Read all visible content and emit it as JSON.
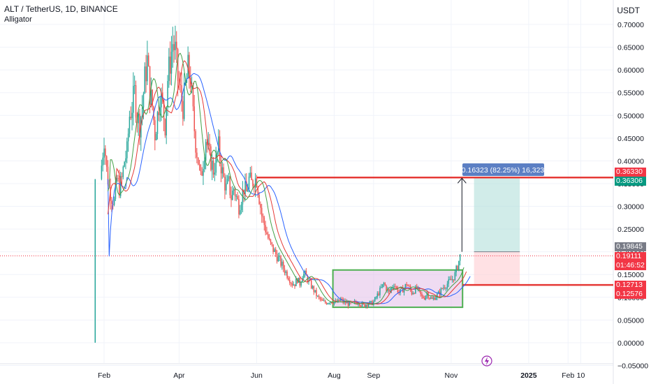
{
  "header": {
    "symbol_line": "ALT / TetherUS, 1D, BINANCE",
    "indicator": "Alligator",
    "currency": "USDT"
  },
  "measure_label": "0.16323 (82.25%) 16,323",
  "price_tags": [
    {
      "text": "0.36330",
      "bg": "#f23645",
      "fg": "#ffffff"
    },
    {
      "text": "0.36306",
      "bg": "#089981",
      "fg": "#ffffff"
    },
    {
      "text": "0.19845",
      "bg": "#787b86",
      "fg": "#ffffff"
    },
    {
      "text": "0.19111",
      "bg": "#f23645",
      "fg": "#ffffff"
    },
    {
      "text": "01:46:52",
      "bg": "#f23645",
      "fg": "#ffffff"
    },
    {
      "text": "0.12713",
      "bg": "#f23645",
      "fg": "#ffffff"
    },
    {
      "text": "0.12576",
      "bg": "#f23645",
      "fg": "#ffffff"
    }
  ],
  "colors": {
    "up": "#26a69a",
    "down": "#ef5350",
    "jaw": "#2962ff",
    "teeth": "#e53935",
    "lips": "#43a047",
    "resistance": "#e53935",
    "range_box_stroke": "#4caf50",
    "range_box_fill": "#e1bee7",
    "target_fill": "#b2dfdb",
    "stop_fill": "#ffcdd2"
  },
  "chart_data": {
    "type": "candlestick",
    "title": "ALT / TetherUS, 1D, BINANCE",
    "y_axis_unit": "USDT",
    "ylim": [
      -0.06,
      0.72
    ],
    "y_ticks": [
      "0.70000",
      "0.65000",
      "0.60000",
      "0.55000",
      "0.50000",
      "0.45000",
      "0.40000",
      "0.35000",
      "0.30000",
      "0.25000",
      "0.20000",
      "0.15000",
      "0.10000",
      "0.05000",
      "0.00000",
      "−0.05000"
    ],
    "y_tick_values": [
      0.7,
      0.65,
      0.6,
      0.55,
      0.5,
      0.45,
      0.4,
      0.35,
      0.3,
      0.25,
      0.2,
      0.15,
      0.1,
      0.05,
      0.0,
      -0.05
    ],
    "x_ticks": [
      "Feb",
      "Apr",
      "Jun",
      "Aug",
      "Sep",
      "Nov",
      "2025",
      "Feb",
      "10"
    ],
    "x_tick_days": [
      0,
      59,
      120,
      181,
      212,
      273,
      334,
      365,
      375
    ],
    "close_path": [
      [
        -5,
        0.36
      ],
      [
        -4,
        0.02
      ],
      [
        -3,
        0.36
      ],
      [
        -1,
        0.42
      ],
      [
        0,
        0.45
      ],
      [
        2,
        0.38
      ],
      [
        4,
        0.34
      ],
      [
        6,
        0.32
      ],
      [
        8,
        0.31
      ],
      [
        10,
        0.36
      ],
      [
        12,
        0.34
      ],
      [
        14,
        0.36
      ],
      [
        16,
        0.4
      ],
      [
        18,
        0.42
      ],
      [
        20,
        0.5
      ],
      [
        22,
        0.52
      ],
      [
        24,
        0.55
      ],
      [
        26,
        0.5
      ],
      [
        28,
        0.48
      ],
      [
        30,
        0.52
      ],
      [
        32,
        0.58
      ],
      [
        34,
        0.62
      ],
      [
        36,
        0.55
      ],
      [
        38,
        0.52
      ],
      [
        40,
        0.46
      ],
      [
        42,
        0.5
      ],
      [
        44,
        0.55
      ],
      [
        46,
        0.52
      ],
      [
        48,
        0.48
      ],
      [
        50,
        0.58
      ],
      [
        52,
        0.62
      ],
      [
        54,
        0.66
      ],
      [
        56,
        0.64
      ],
      [
        58,
        0.58
      ],
      [
        60,
        0.55
      ],
      [
        62,
        0.52
      ],
      [
        64,
        0.56
      ],
      [
        66,
        0.6
      ],
      [
        68,
        0.58
      ],
      [
        70,
        0.5
      ],
      [
        72,
        0.44
      ],
      [
        74,
        0.4
      ],
      [
        76,
        0.36
      ],
      [
        78,
        0.4
      ],
      [
        80,
        0.45
      ],
      [
        82,
        0.42
      ],
      [
        84,
        0.4
      ],
      [
        86,
        0.38
      ],
      [
        88,
        0.4
      ],
      [
        90,
        0.43
      ],
      [
        92,
        0.39
      ],
      [
        94,
        0.36
      ],
      [
        96,
        0.34
      ],
      [
        98,
        0.35
      ],
      [
        100,
        0.32
      ],
      [
        102,
        0.34
      ],
      [
        104,
        0.32
      ],
      [
        106,
        0.3
      ],
      [
        108,
        0.32
      ],
      [
        110,
        0.34
      ],
      [
        112,
        0.33
      ],
      [
        114,
        0.36
      ],
      [
        116,
        0.35
      ],
      [
        118,
        0.36
      ],
      [
        120,
        0.36
      ],
      [
        122,
        0.32
      ],
      [
        124,
        0.28
      ],
      [
        126,
        0.26
      ],
      [
        128,
        0.24
      ],
      [
        130,
        0.22
      ],
      [
        132,
        0.21
      ],
      [
        134,
        0.2
      ],
      [
        136,
        0.19
      ],
      [
        138,
        0.18
      ],
      [
        140,
        0.17
      ],
      [
        142,
        0.16
      ],
      [
        144,
        0.15
      ],
      [
        146,
        0.14
      ],
      [
        148,
        0.13
      ],
      [
        150,
        0.13
      ],
      [
        152,
        0.14
      ],
      [
        154,
        0.13
      ],
      [
        156,
        0.15
      ],
      [
        158,
        0.15
      ],
      [
        160,
        0.14
      ],
      [
        162,
        0.13
      ],
      [
        164,
        0.12
      ],
      [
        166,
        0.11
      ],
      [
        168,
        0.1
      ],
      [
        170,
        0.095
      ],
      [
        172,
        0.09
      ],
      [
        174,
        0.088
      ],
      [
        176,
        0.09
      ],
      [
        178,
        0.092
      ],
      [
        180,
        0.09
      ],
      [
        182,
        0.088
      ],
      [
        184,
        0.09
      ],
      [
        186,
        0.095
      ],
      [
        188,
        0.09
      ],
      [
        190,
        0.088
      ],
      [
        192,
        0.086
      ],
      [
        194,
        0.085
      ],
      [
        196,
        0.086
      ],
      [
        198,
        0.088
      ],
      [
        200,
        0.09
      ],
      [
        202,
        0.085
      ],
      [
        204,
        0.082
      ],
      [
        206,
        0.085
      ],
      [
        208,
        0.088
      ],
      [
        210,
        0.086
      ],
      [
        212,
        0.09
      ],
      [
        214,
        0.1
      ],
      [
        216,
        0.11
      ],
      [
        218,
        0.12
      ],
      [
        220,
        0.13
      ],
      [
        222,
        0.12
      ],
      [
        224,
        0.11
      ],
      [
        226,
        0.12
      ],
      [
        228,
        0.13
      ],
      [
        230,
        0.12
      ],
      [
        232,
        0.11
      ],
      [
        234,
        0.115
      ],
      [
        236,
        0.12
      ],
      [
        238,
        0.13
      ],
      [
        240,
        0.12
      ],
      [
        242,
        0.11
      ],
      [
        244,
        0.115
      ],
      [
        246,
        0.12
      ],
      [
        248,
        0.11
      ],
      [
        250,
        0.1
      ],
      [
        252,
        0.1
      ],
      [
        254,
        0.11
      ],
      [
        256,
        0.1
      ],
      [
        258,
        0.095
      ],
      [
        260,
        0.1
      ],
      [
        262,
        0.105
      ],
      [
        264,
        0.11
      ],
      [
        266,
        0.12
      ],
      [
        268,
        0.125
      ],
      [
        270,
        0.13
      ],
      [
        272,
        0.135
      ],
      [
        274,
        0.14
      ],
      [
        276,
        0.15
      ],
      [
        278,
        0.17
      ],
      [
        280,
        0.19
      ]
    ],
    "resistance_level": 0.3633,
    "support_level": 0.1271,
    "range_box": {
      "x0": 180,
      "x1": 282,
      "y0": 0.078,
      "y1": 0.16
    },
    "measure": {
      "from": 0.2,
      "to": 0.3633,
      "label": "0.16323 (82.25%) 16,323"
    },
    "last_price": 0.19845
  }
}
